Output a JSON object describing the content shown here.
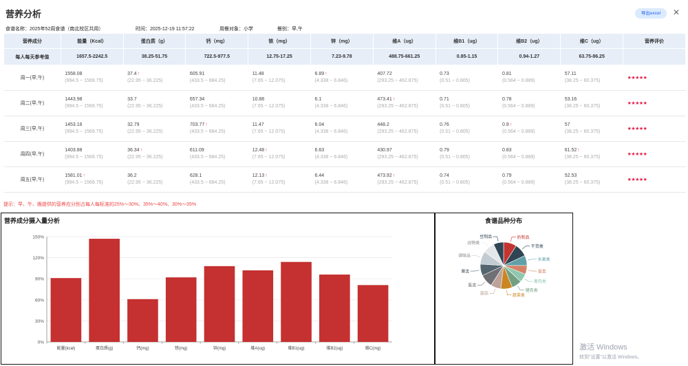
{
  "page": {
    "title": "营养分析",
    "export_label": "导出excel",
    "close_glyph": "✕"
  },
  "meta": {
    "recipe": "食谱名称：2025年52周食谱（南北校区共用）",
    "time": "时间：2025-12-19 11:57:22",
    "target": "用餐对象：小学",
    "meal": "餐别：早,午"
  },
  "table": {
    "headers": [
      "营养成分",
      "能量（Kcal）",
      "蛋白质（g）",
      "钙（mg）",
      "铁（mg）",
      "锌（mg）",
      "维A（ug）",
      "维B1（ug）",
      "维B2（ug）",
      "维C（ug）",
      "营养评价"
    ],
    "reference": [
      "每人每天参考值",
      "1657.5-2242.5",
      "38.25-51.75",
      "722.5-977.5",
      "12.75-17.25",
      "7.23-9.78",
      "488.75-661.25",
      "0.85-1.15",
      "0.94-1.27",
      "63.75-86.25",
      ""
    ],
    "ranges": [
      "(994.5 ~ 1569.75)",
      "(22.95 ~ 36.225)",
      "(433.5 ~ 684.25)",
      "(7.65 ~ 12.075)",
      "(4.338 ~ 6.846)",
      "(293.25 ~ 462.875)",
      "(0.51 ~ 0.805)",
      "(0.564 ~ 0.889)",
      "(38.25 ~ 60.375)"
    ],
    "rows": [
      {
        "day": "周一(早,午)",
        "values": [
          "1558.08",
          "37.4",
          "605.91",
          "11.48",
          "6.89",
          "407.72",
          "0.73",
          "0.81",
          "57.11"
        ],
        "up": [
          false,
          true,
          false,
          false,
          true,
          false,
          false,
          false,
          false
        ],
        "rating": "★★★★★"
      },
      {
        "day": "周二(早,午)",
        "values": [
          "1443.98",
          "33.7",
          "657.34",
          "10.88",
          "6.1",
          "473.41",
          "0.71",
          "0.78",
          "53.16"
        ],
        "up": [
          false,
          false,
          false,
          false,
          false,
          true,
          false,
          false,
          false
        ],
        "rating": "★★★★★"
      },
      {
        "day": "周三(早,午)",
        "values": [
          "1453.16",
          "32.79",
          "703.77",
          "11.47",
          "6.04",
          "448.2",
          "0.76",
          "0.9",
          "57"
        ],
        "up": [
          false,
          false,
          true,
          false,
          false,
          false,
          false,
          true,
          false
        ],
        "rating": "★★★★★"
      },
      {
        "day": "周四(早,午)",
        "values": [
          "1403.88",
          "36.34",
          "611.09",
          "12.48",
          "6.63",
          "430.97",
          "0.79",
          "0.83",
          "61.52"
        ],
        "up": [
          false,
          true,
          false,
          true,
          false,
          false,
          false,
          false,
          true
        ],
        "rating": "★★★★★"
      },
      {
        "day": "周五(早,午)",
        "values": [
          "1581.01",
          "36.2",
          "628.1",
          "12.13",
          "6.44",
          "473.92",
          "0.74",
          "0.79",
          "52.53"
        ],
        "up": [
          true,
          false,
          false,
          true,
          false,
          true,
          false,
          false,
          false
        ],
        "rating": "★★★★★"
      }
    ]
  },
  "hint": "提示：早、午、晚提供的营养应分别占每人每标准的25%～30%、35%～40%、30%～35%",
  "chart_data": [
    {
      "type": "bar",
      "title": "营养成分摄入量分析",
      "categories": [
        "能量(kcal)",
        "蛋白质(g)",
        "钙(mg)",
        "铁(mg)",
        "锌(mg)",
        "维A(ug)",
        "维B1(ug)",
        "维B2(ug)",
        "维C(mg)"
      ],
      "values": [
        91,
        147,
        61,
        92,
        108,
        102,
        114,
        96,
        81
      ],
      "ylim": [
        0,
        150
      ],
      "yticks": [
        "0%",
        "30%",
        "60%",
        "90%",
        "120%",
        "150%"
      ],
      "grid": true,
      "color": "#c53030"
    },
    {
      "type": "pie",
      "title": "食谱品种分布",
      "labels": [
        "奶制品",
        "干货类",
        "水果类",
        "蛋类",
        "禽肉类",
        "猪肉类",
        "蔬菜类",
        "菌菇",
        "畜类",
        "薯类",
        "调味品",
        "谷物类",
        "豆制品"
      ],
      "values": [
        9,
        9,
        7,
        6,
        6,
        7,
        8,
        7,
        9,
        8,
        9,
        8,
        7
      ],
      "colors": [
        "#c23531",
        "#2f4554",
        "#61a0a8",
        "#d48265",
        "#91c7ae",
        "#749f83",
        "#ca8622",
        "#bda29a",
        "#6e7074",
        "#546570",
        "#c4ccd3",
        "#e4e7ea",
        "#2f4554"
      ]
    }
  ],
  "watermark": {
    "line1": "激活 Windows",
    "line2": "转到\"设置\"以激活 Windows。"
  }
}
